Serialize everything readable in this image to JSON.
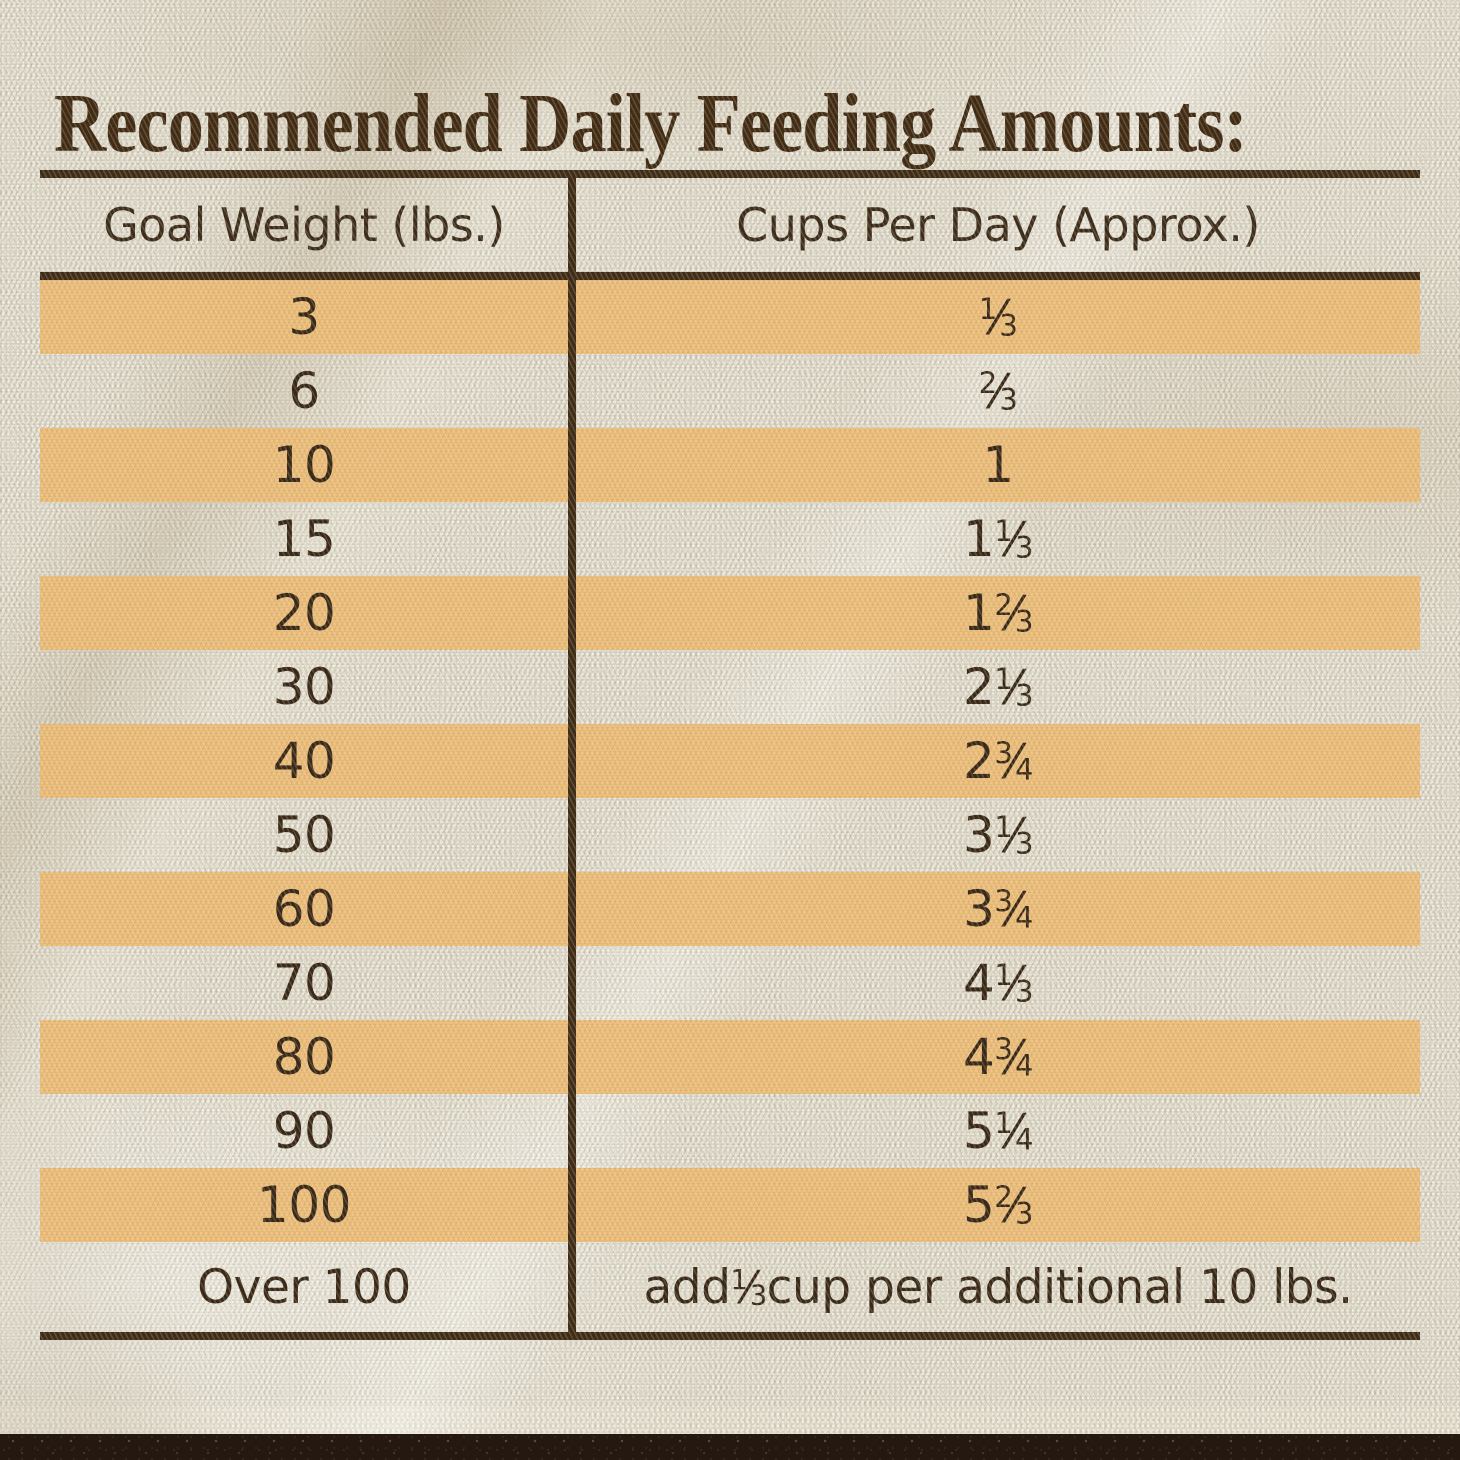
{
  "title": "Recommended Daily Feeding Amounts:",
  "table": {
    "columns": [
      {
        "label": "Goal Weight (lbs.)"
      },
      {
        "label": "Cups Per Day (Approx.)"
      }
    ],
    "rows": [
      {
        "goal_weight": "3",
        "cups_per_day": "1/3",
        "highlighted": true
      },
      {
        "goal_weight": "6",
        "cups_per_day": "2/3",
        "highlighted": false
      },
      {
        "goal_weight": "10",
        "cups_per_day": "1",
        "highlighted": true
      },
      {
        "goal_weight": "15",
        "cups_per_day": "1 1/3",
        "highlighted": false
      },
      {
        "goal_weight": "20",
        "cups_per_day": "1 2/3",
        "highlighted": true
      },
      {
        "goal_weight": "30",
        "cups_per_day": "2 1/3",
        "highlighted": false
      },
      {
        "goal_weight": "40",
        "cups_per_day": "2 3/4",
        "highlighted": true
      },
      {
        "goal_weight": "50",
        "cups_per_day": "3 1/3",
        "highlighted": false
      },
      {
        "goal_weight": "60",
        "cups_per_day": "3 3/4",
        "highlighted": true
      },
      {
        "goal_weight": "70",
        "cups_per_day": "4 1/3",
        "highlighted": false
      },
      {
        "goal_weight": "80",
        "cups_per_day": "4 3/4",
        "highlighted": true
      },
      {
        "goal_weight": "90",
        "cups_per_day": "5 1/4",
        "highlighted": false
      },
      {
        "goal_weight": "100",
        "cups_per_day": "5 2/3",
        "highlighted": true
      },
      {
        "goal_weight": "Over 100",
        "cups_per_day": "add 1/3 cup per additional 10 lbs.",
        "highlighted": false
      }
    ]
  },
  "colors": {
    "highlight_row": "#edbc74",
    "accent_bar": "#f29204",
    "rule_and_text": "#3e2b14",
    "title_text": "#412a12",
    "fabric_background": "#e9e3d3",
    "soil_strip": "#241811"
  },
  "chart_data": {
    "type": "table",
    "title": "Recommended Daily Feeding Amounts:",
    "columns": [
      "Goal Weight (lbs.)",
      "Cups Per Day (Approx.)"
    ],
    "rows": [
      [
        "3",
        "1/3"
      ],
      [
        "6",
        "2/3"
      ],
      [
        "10",
        "1"
      ],
      [
        "15",
        "1 1/3"
      ],
      [
        "20",
        "1 2/3"
      ],
      [
        "30",
        "2 1/3"
      ],
      [
        "40",
        "2 3/4"
      ],
      [
        "50",
        "3 1/3"
      ],
      [
        "60",
        "3 3/4"
      ],
      [
        "70",
        "4 1/3"
      ],
      [
        "80",
        "4 3/4"
      ],
      [
        "90",
        "5 1/4"
      ],
      [
        "100",
        "5 2/3"
      ],
      [
        "Over 100",
        "add 1/3 cup per additional 10 lbs."
      ]
    ],
    "cups_numeric": [
      0.333,
      0.667,
      1,
      1.333,
      1.667,
      2.333,
      2.75,
      3.333,
      3.75,
      4.333,
      4.75,
      5.25,
      5.667,
      null
    ],
    "highlighted_row_indexes": [
      0,
      2,
      4,
      6,
      8,
      10,
      12
    ],
    "legend": "none",
    "layout": "two-column ruled table on woven fabric background with alternating orange stripes"
  }
}
